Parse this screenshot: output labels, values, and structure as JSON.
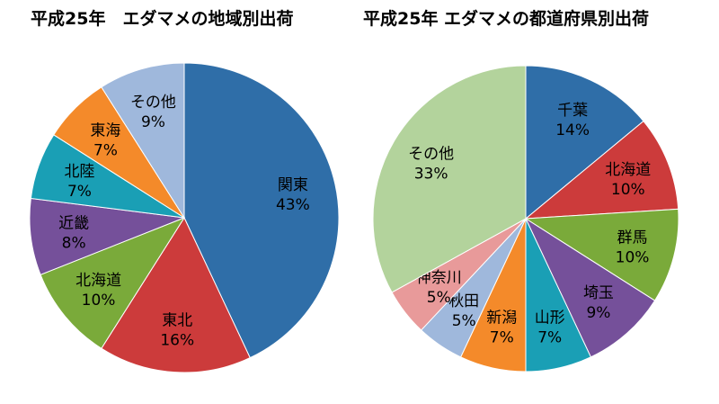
{
  "chart_data": [
    {
      "type": "pie",
      "title": "平成25年　エダマメの地域別出荷",
      "slices": [
        {
          "label": "関東",
          "value": 43,
          "pct_label": "43%",
          "color": "#2f6ea8"
        },
        {
          "label": "東北",
          "value": 16,
          "pct_label": "16%",
          "color": "#cc3b3b"
        },
        {
          "label": "北海道",
          "value": 10,
          "pct_label": "10%",
          "color": "#7aaa3a"
        },
        {
          "label": "近畿",
          "value": 8,
          "pct_label": "8%",
          "color": "#75509a"
        },
        {
          "label": "北陸",
          "value": 7,
          "pct_label": "7%",
          "color": "#1a9fb5"
        },
        {
          "label": "東海",
          "value": 7,
          "pct_label": "7%",
          "color": "#f48a2a"
        },
        {
          "label": "その他",
          "value": 9,
          "pct_label": "9%",
          "color": "#9fb8dc"
        }
      ]
    },
    {
      "type": "pie",
      "title": "平成25年 エダマメの都道府県別出荷",
      "slices": [
        {
          "label": "千葉",
          "value": 14,
          "pct_label": "14%",
          "color": "#2f6ea8"
        },
        {
          "label": "北海道",
          "value": 10,
          "pct_label": "10%",
          "color": "#cc3b3b"
        },
        {
          "label": "群馬",
          "value": 10,
          "pct_label": "10%",
          "color": "#7aaa3a"
        },
        {
          "label": "埼玉",
          "value": 9,
          "pct_label": "9%",
          "color": "#75509a"
        },
        {
          "label": "山形",
          "value": 7,
          "pct_label": "7%",
          "color": "#1a9fb5"
        },
        {
          "label": "新潟",
          "value": 7,
          "pct_label": "7%",
          "color": "#f48a2a"
        },
        {
          "label": "秋田",
          "value": 5,
          "pct_label": "5%",
          "color": "#9fb8dc"
        },
        {
          "label": "神奈川",
          "value": 5,
          "pct_label": "5%",
          "color": "#e89a9a"
        },
        {
          "label": "その他",
          "value": 33,
          "pct_label": "33%",
          "color": "#b3d39c"
        }
      ]
    }
  ]
}
